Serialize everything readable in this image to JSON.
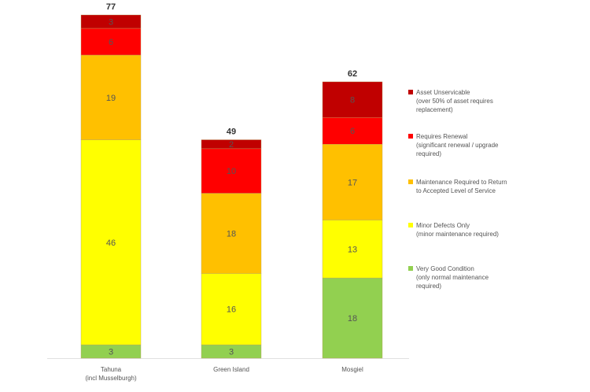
{
  "chart_data": {
    "type": "bar",
    "stacked": true,
    "categories": [
      "Tahuna",
      "Green Island",
      "Mosgiel"
    ],
    "category_sublabels": [
      "(incl Musselburgh)",
      "",
      ""
    ],
    "totals": [
      77,
      49,
      62
    ],
    "series": [
      {
        "name": "Very Good Condition",
        "desc": "(only normal maintenance\nrequired)",
        "color": "#92d050",
        "values": [
          3,
          3,
          18
        ]
      },
      {
        "name": "Minor Defects Only",
        "desc": "(minor maintenance required)",
        "color": "#ffff00",
        "values": [
          46,
          16,
          13
        ]
      },
      {
        "name": "Maintenance Required to Return",
        "desc": "to Accepted Level of Service",
        "color": "#ffc000",
        "values": [
          19,
          18,
          17
        ]
      },
      {
        "name": "Requires Renewal",
        "desc": " (significant renewal / upgrade\nrequired)",
        "color": "#ff0000",
        "values": [
          6,
          10,
          6
        ]
      },
      {
        "name": "Asset Unservicable",
        "desc": "(over 50% of asset requires\nreplacement)",
        "color": "#c00000",
        "values": [
          3,
          2,
          8
        ]
      }
    ],
    "ylim": [
      0,
      77
    ],
    "legend_position": "right",
    "grid": false
  }
}
